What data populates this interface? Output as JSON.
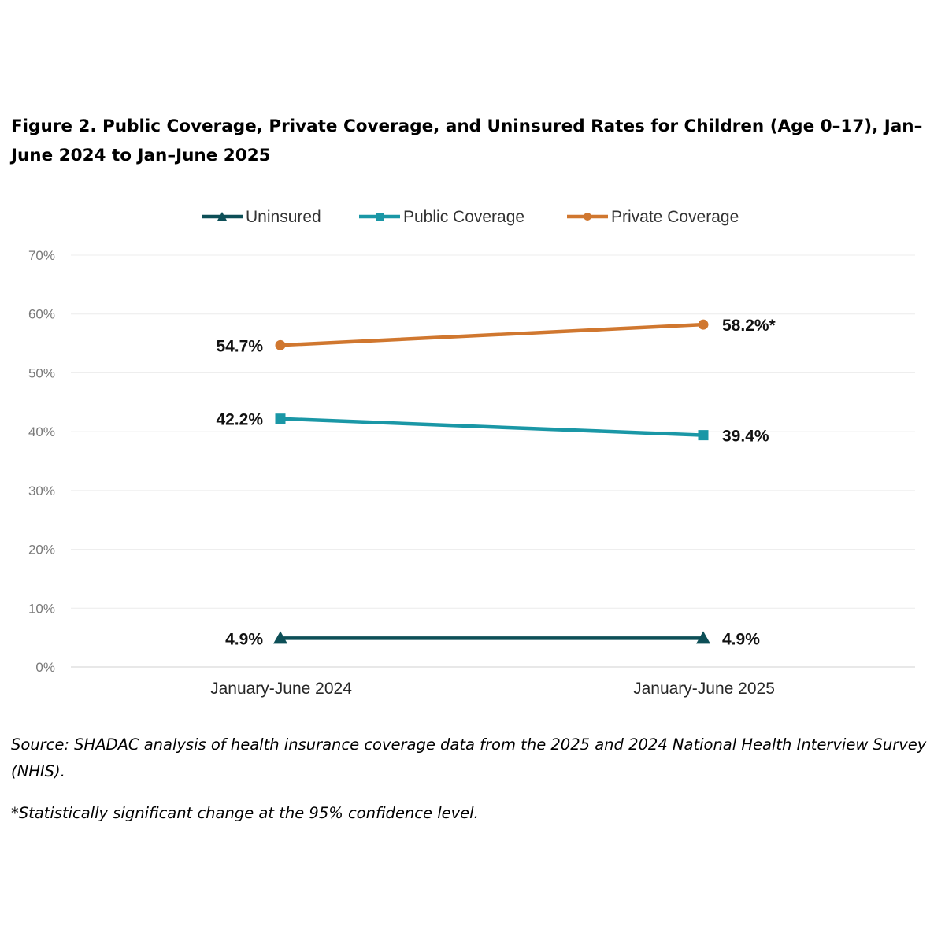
{
  "title": "Figure 2. Public Coverage, Private Coverage, and Uninsured Rates for Children (Age 0–17), Jan–June 2024 to Jan–June 2025",
  "source": "Source: SHADAC analysis of health insurance coverage data from the 2025 and 2024 National Health Interview Survey (NHIS).",
  "footnote": "*Statistically significant change at the 95% confidence level.",
  "chart_data": {
    "type": "line",
    "categories": [
      "January-June 2024",
      "January-June 2025"
    ],
    "ylim": [
      0,
      70
    ],
    "yticks": [
      0,
      10,
      20,
      30,
      40,
      50,
      60,
      70
    ],
    "ytick_labels": [
      "0%",
      "10%",
      "20%",
      "30%",
      "40%",
      "50%",
      "60%",
      "70%"
    ],
    "grid": true,
    "legend_position": "top",
    "series": [
      {
        "name": "Uninsured",
        "marker": "triangle",
        "color": "#0d4f57",
        "values": [
          4.9,
          4.9
        ],
        "labels": [
          "4.9%",
          "4.9%"
        ]
      },
      {
        "name": "Public Coverage",
        "marker": "square",
        "color": "#1a97a6",
        "values": [
          42.2,
          39.4
        ],
        "labels": [
          "42.2%",
          "39.4%"
        ]
      },
      {
        "name": "Private Coverage",
        "marker": "circle",
        "color": "#d0772f",
        "values": [
          54.7,
          58.2
        ],
        "labels": [
          "54.7%",
          "58.2%*"
        ]
      }
    ]
  }
}
